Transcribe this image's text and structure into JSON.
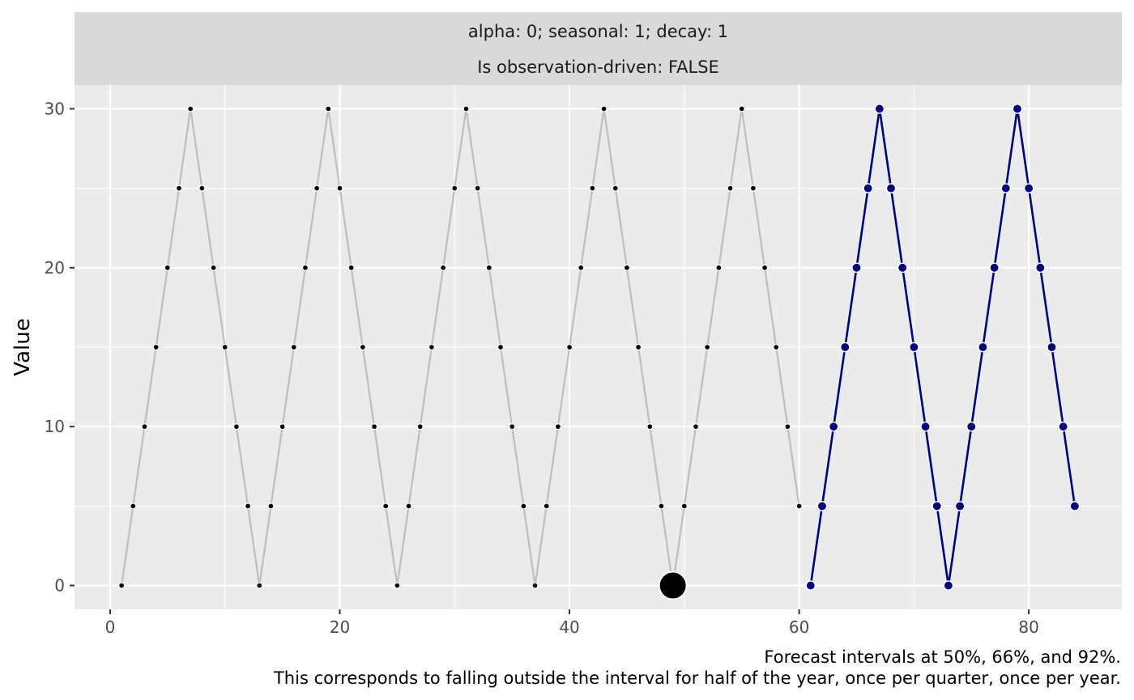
{
  "chart_data": {
    "type": "line",
    "strip": {
      "line1": "alpha: 0; seasonal: 1; decay: 1",
      "line2": "Is observation-driven: FALSE"
    },
    "xlabel": "",
    "ylabel": "Value",
    "xlim": [
      -3.1,
      88.1
    ],
    "ylim": [
      -1.5,
      31.5
    ],
    "x_ticks": [
      0,
      20,
      40,
      60,
      80
    ],
    "x_tick_labels": [
      "0",
      "20",
      "40",
      "60",
      "80"
    ],
    "y_ticks": [
      0,
      10,
      20,
      30
    ],
    "y_tick_labels": [
      "0",
      "10",
      "20",
      "30"
    ],
    "grid": true,
    "colors": {
      "panel_background": "#EBEBEB",
      "strip_background": "#D9D9D9",
      "grid": "#FFFFFF",
      "history_line": "#BEBEBE",
      "history_point": "#000000",
      "forecast_line": "#000080",
      "forecast_point": "#000080",
      "highlight_point": "#000000"
    },
    "series": [
      {
        "role": "history",
        "x": [
          1,
          2,
          3,
          4,
          5,
          6,
          7,
          8,
          9,
          10,
          11,
          12,
          13,
          14,
          15,
          16,
          17,
          18,
          19,
          20,
          21,
          22,
          23,
          24,
          25,
          26,
          27,
          28,
          29,
          30,
          31,
          32,
          33,
          34,
          35,
          36,
          37,
          38,
          39,
          40,
          41,
          42,
          43,
          44,
          45,
          46,
          47,
          48,
          49,
          50,
          51,
          52,
          53,
          54,
          55,
          56,
          57,
          58,
          59,
          60
        ],
        "y": [
          0,
          5,
          10,
          15,
          20,
          25,
          30,
          25,
          20,
          15,
          10,
          5,
          0,
          5,
          10,
          15,
          20,
          25,
          30,
          25,
          20,
          15,
          10,
          5,
          0,
          5,
          10,
          15,
          20,
          25,
          30,
          25,
          20,
          15,
          10,
          5,
          0,
          5,
          10,
          15,
          20,
          25,
          30,
          25,
          20,
          15,
          10,
          5,
          0,
          5,
          10,
          15,
          20,
          25,
          30,
          25,
          20,
          15,
          10,
          5
        ]
      },
      {
        "role": "forecast",
        "x": [
          61,
          62,
          63,
          64,
          65,
          66,
          67,
          68,
          69,
          70,
          71,
          72,
          73,
          74,
          75,
          76,
          77,
          78,
          79,
          80,
          81,
          82,
          83,
          84
        ],
        "y": [
          0,
          5,
          10,
          15,
          20,
          25,
          30,
          25,
          20,
          15,
          10,
          5,
          0,
          5,
          10,
          15,
          20,
          25,
          30,
          25,
          20,
          15,
          10,
          5
        ]
      }
    ],
    "highlight": {
      "x": 49,
      "y": 0
    },
    "caption": {
      "line1": "Forecast intervals at 50%, 66%, and 92%.",
      "line2": "This corresponds to falling outside the interval for half of the year, once per quarter, once per year."
    }
  }
}
